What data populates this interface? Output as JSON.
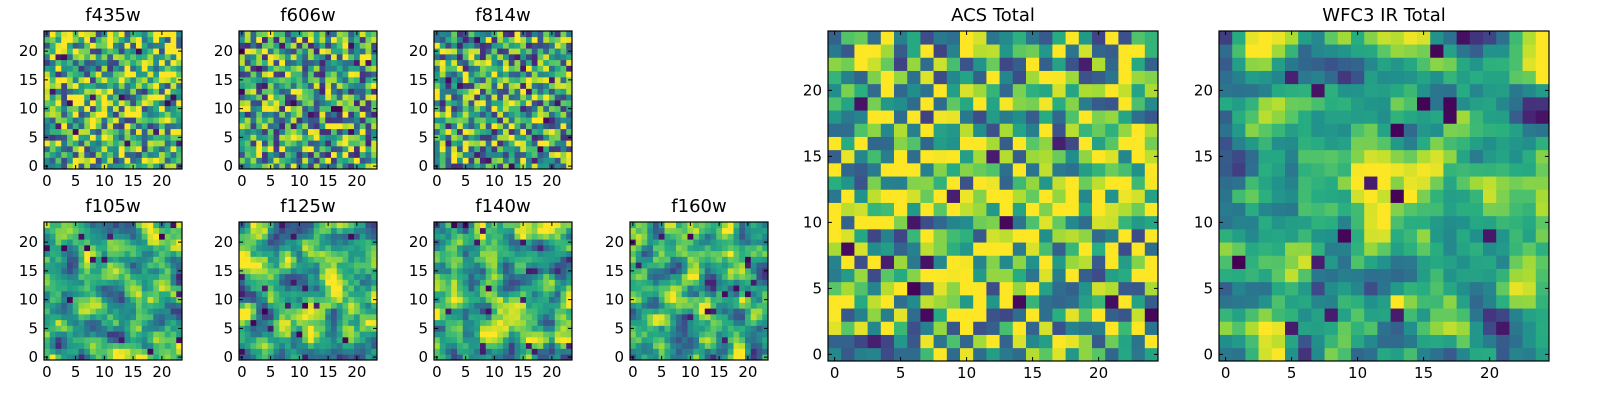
{
  "figure": {
    "background": "#ffffff",
    "colormap": "viridis"
  },
  "chart_data": [
    {
      "title": "f435w",
      "type": "heatmap",
      "grid": "24x24 pixels",
      "x_ticks": [
        "0",
        "5",
        "10",
        "15",
        "20"
      ],
      "y_ticks": [
        "0",
        "5",
        "10",
        "15",
        "20"
      ],
      "xlim": [
        0,
        24
      ],
      "ylim": [
        0,
        24
      ],
      "texture": "speckled noise, mostly green-yellow with scattered dark pixels",
      "seed": 11,
      "smooth": 0,
      "base": 0.66
    },
    {
      "title": "f606w",
      "type": "heatmap",
      "grid": "24x24 pixels",
      "x_ticks": [
        "0",
        "5",
        "10",
        "15",
        "20"
      ],
      "y_ticks": [
        "0",
        "5",
        "10",
        "15",
        "20"
      ],
      "xlim": [
        0,
        24
      ],
      "ylim": [
        0,
        24
      ],
      "texture": "speckled noise, green-teal with scattered dark pixels",
      "seed": 23,
      "smooth": 0,
      "base": 0.6
    },
    {
      "title": "f814w",
      "type": "heatmap",
      "grid": "24x24 pixels",
      "x_ticks": [
        "0",
        "5",
        "10",
        "15",
        "20"
      ],
      "y_ticks": [
        "0",
        "5",
        "10",
        "15",
        "20"
      ],
      "xlim": [
        0,
        24
      ],
      "ylim": [
        0,
        24
      ],
      "texture": "speckled noise, green-teal with scattered dark pixels",
      "seed": 37,
      "smooth": 0,
      "base": 0.6
    },
    {
      "title": "f105w",
      "type": "heatmap",
      "grid": "24x24 pixels",
      "x_ticks": [
        "0",
        "5",
        "10",
        "15",
        "20"
      ],
      "y_ticks": [
        "0",
        "5",
        "10",
        "15",
        "20"
      ],
      "xlim": [
        0,
        24
      ],
      "ylim": [
        0,
        24
      ],
      "texture": "smoothed noise, yellow patches with a few dark blobs",
      "seed": 41,
      "smooth": 1,
      "base": 0.62
    },
    {
      "title": "f125w",
      "type": "heatmap",
      "grid": "24x24 pixels",
      "x_ticks": [
        "0",
        "5",
        "10",
        "15",
        "20"
      ],
      "y_ticks": [
        "0",
        "5",
        "10",
        "15",
        "20"
      ],
      "xlim": [
        0,
        24
      ],
      "ylim": [
        0,
        24
      ],
      "texture": "smoothed noise, yellow patches with a few dark blobs",
      "seed": 53,
      "smooth": 1,
      "base": 0.64
    },
    {
      "title": "f140w",
      "type": "heatmap",
      "grid": "24x24 pixels",
      "x_ticks": [
        "0",
        "5",
        "10",
        "15",
        "20"
      ],
      "y_ticks": [
        "0",
        "5",
        "10",
        "15",
        "20"
      ],
      "xlim": [
        0,
        24
      ],
      "ylim": [
        0,
        24
      ],
      "texture": "smoothed noise, yellow patches with a few dark blobs",
      "seed": 67,
      "smooth": 1,
      "base": 0.66
    },
    {
      "title": "f160w",
      "type": "heatmap",
      "grid": "24x24 pixels",
      "x_ticks": [
        "0",
        "5",
        "10",
        "15",
        "20"
      ],
      "y_ticks": [
        "0",
        "5",
        "10",
        "15",
        "20"
      ],
      "xlim": [
        0,
        24
      ],
      "ylim": [
        0,
        24
      ],
      "texture": "smoothed noise, yellow patches with a few dark blobs",
      "seed": 79,
      "smooth": 1,
      "base": 0.64
    },
    {
      "title": "ACS Total",
      "type": "heatmap",
      "grid": "25x25 pixels",
      "x_ticks": [
        "0",
        "5",
        "10",
        "15",
        "20"
      ],
      "y_ticks": [
        "0",
        "5",
        "10",
        "15",
        "20"
      ],
      "xlim": [
        0,
        25
      ],
      "ylim": [
        0,
        25
      ],
      "texture": "noise with a brighter horizontal band near y=11-12 and scattered dark pixels",
      "seed": 97,
      "smooth": 0,
      "base": 0.68
    },
    {
      "title": "WFC3 IR Total",
      "type": "heatmap",
      "grid": "25x25 pixels",
      "x_ticks": [
        "0",
        "5",
        "10",
        "15",
        "20"
      ],
      "y_ticks": [
        "0",
        "5",
        "10",
        "15",
        "20"
      ],
      "xlim": [
        0,
        25
      ],
      "ylim": [
        0,
        25
      ],
      "texture": "smoothed noise with a bright yellow source around x=12, y=13 and dark pixels",
      "seed": 113,
      "smooth": 1,
      "base": 0.6
    }
  ]
}
